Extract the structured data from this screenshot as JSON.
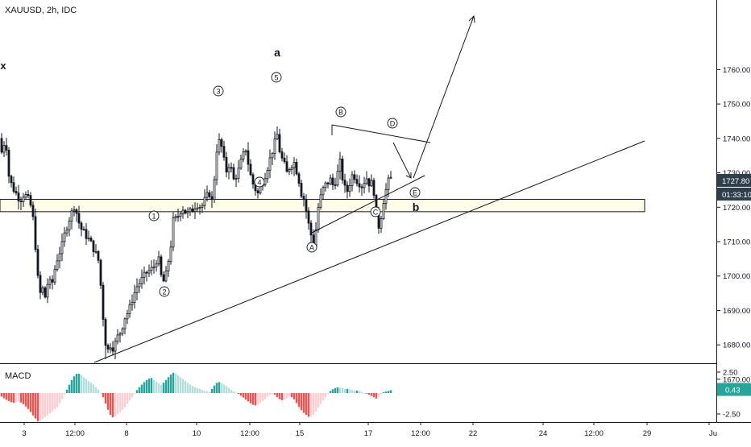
{
  "header": {
    "title": "XAUUSD, 2h, IDC"
  },
  "macd": {
    "label": "MACD",
    "ticks": [
      "2.50",
      "-2.50"
    ],
    "value_badge": "0.43"
  },
  "price_badges": {
    "last": "1727.80",
    "countdown": "01:33:10"
  },
  "colors": {
    "up_candle": "#ffffff",
    "down_candle": "#131722",
    "macd_pos_strong": "#26a69a",
    "macd_pos_weak": "#b2dfdb",
    "macd_neg_strong": "#ef5350",
    "macd_neg_weak": "#ffcdd2",
    "zone_fill": "#fffde7",
    "badge_bg": "#2f3e4b",
    "macd_badge_bg": "#26a69a"
  },
  "chart_data": {
    "type": "candlestick",
    "y_axis": {
      "ticks": [
        1670,
        1680,
        1690,
        1700,
        1710,
        1720,
        1730,
        1740,
        1750,
        1760
      ],
      "labels": [
        "1670.00",
        "1680.00",
        "1690.00",
        "1700.00",
        "1710.00",
        "1720.00",
        "1730.00",
        "1740.00",
        "1750.00",
        "1760.00"
      ],
      "range": [
        1666,
        1776
      ]
    },
    "x_axis": {
      "labels": [
        "3",
        "12:00",
        "8",
        "10",
        "12:00",
        "15",
        "17",
        "12:00",
        "22",
        "24",
        "12:00",
        "29",
        "Ju"
      ]
    },
    "price_path": [
      [
        0,
        1740
      ],
      [
        4,
        1732
      ],
      [
        6,
        1745
      ],
      [
        10,
        1730
      ],
      [
        15,
        1726
      ],
      [
        20,
        1724
      ],
      [
        25,
        1722
      ],
      [
        30,
        1724
      ],
      [
        36,
        1722
      ],
      [
        40,
        1719
      ],
      [
        43,
        1712
      ],
      [
        46,
        1702
      ],
      [
        49,
        1694
      ],
      [
        52,
        1697
      ],
      [
        56,
        1694
      ],
      [
        60,
        1699
      ],
      [
        64,
        1697
      ],
      [
        68,
        1702
      ],
      [
        72,
        1706
      ],
      [
        76,
        1708
      ],
      [
        80,
        1712
      ],
      [
        85,
        1716
      ],
      [
        90,
        1719
      ],
      [
        93,
        1721
      ],
      [
        96,
        1717
      ],
      [
        100,
        1714
      ],
      [
        106,
        1712
      ],
      [
        112,
        1710
      ],
      [
        118,
        1707
      ],
      [
        123,
        1704
      ],
      [
        126,
        1694
      ],
      [
        130,
        1682
      ],
      [
        133,
        1678
      ],
      [
        137,
        1680
      ],
      [
        141,
        1679
      ],
      [
        145,
        1682
      ],
      [
        150,
        1684
      ],
      [
        155,
        1688
      ],
      [
        160,
        1690
      ],
      [
        165,
        1694
      ],
      [
        170,
        1697
      ],
      [
        176,
        1699
      ],
      [
        182,
        1701
      ],
      [
        188,
        1702
      ],
      [
        192,
        1703
      ],
      [
        196,
        1706
      ],
      [
        200,
        1700
      ],
      [
        204,
        1698
      ],
      [
        208,
        1703
      ],
      [
        212,
        1709
      ],
      [
        215,
        1716
      ],
      [
        220,
        1717
      ],
      [
        226,
        1720
      ],
      [
        232,
        1718
      ],
      [
        238,
        1719
      ],
      [
        244,
        1721
      ],
      [
        250,
        1720
      ],
      [
        256,
        1723
      ],
      [
        260,
        1724
      ],
      [
        264,
        1721
      ],
      [
        268,
        1736
      ],
      [
        272,
        1739
      ],
      [
        276,
        1737
      ],
      [
        280,
        1730
      ],
      [
        285,
        1733
      ],
      [
        290,
        1728
      ],
      [
        295,
        1730
      ],
      [
        300,
        1734
      ],
      [
        305,
        1737
      ],
      [
        310,
        1730
      ],
      [
        315,
        1726
      ],
      [
        320,
        1724
      ],
      [
        325,
        1727
      ],
      [
        330,
        1730
      ],
      [
        335,
        1734
      ],
      [
        340,
        1738
      ],
      [
        344,
        1741
      ],
      [
        348,
        1735
      ],
      [
        352,
        1733
      ],
      [
        356,
        1730
      ],
      [
        360,
        1732
      ],
      [
        365,
        1733
      ],
      [
        370,
        1729
      ],
      [
        374,
        1724
      ],
      [
        378,
        1722
      ],
      [
        382,
        1716
      ],
      [
        386,
        1712
      ],
      [
        390,
        1708
      ],
      [
        394,
        1719
      ],
      [
        398,
        1723
      ],
      [
        402,
        1726
      ],
      [
        406,
        1727
      ],
      [
        410,
        1728
      ],
      [
        414,
        1726
      ],
      [
        418,
        1729
      ],
      [
        422,
        1733
      ],
      [
        426,
        1727
      ],
      [
        430,
        1724
      ],
      [
        434,
        1727
      ],
      [
        438,
        1730
      ],
      [
        442,
        1728
      ],
      [
        446,
        1727
      ],
      [
        450,
        1726
      ],
      [
        454,
        1729
      ],
      [
        458,
        1727
      ],
      [
        462,
        1727
      ],
      [
        466,
        1722
      ],
      [
        468,
        1713
      ],
      [
        472,
        1716
      ],
      [
        476,
        1722
      ],
      [
        480,
        1726
      ],
      [
        484,
        1729
      ],
      [
        487,
        1727
      ]
    ],
    "macd_path": [
      [
        0,
        -0.3
      ],
      [
        8,
        -0.8
      ],
      [
        16,
        -1.2
      ],
      [
        24,
        -1.0
      ],
      [
        30,
        -1.4
      ],
      [
        36,
        -2.0
      ],
      [
        42,
        -2.8
      ],
      [
        48,
        -3.5
      ],
      [
        54,
        -3.0
      ],
      [
        60,
        -2.6
      ],
      [
        66,
        -2.1
      ],
      [
        72,
        -1.6
      ],
      [
        76,
        -0.9
      ],
      [
        80,
        -0.2
      ],
      [
        84,
        0.6
      ],
      [
        88,
        1.4
      ],
      [
        92,
        2.0
      ],
      [
        96,
        2.4
      ],
      [
        100,
        2.2
      ],
      [
        104,
        1.9
      ],
      [
        108,
        1.6
      ],
      [
        112,
        1.3
      ],
      [
        116,
        1.0
      ],
      [
        120,
        0.6
      ],
      [
        124,
        0.2
      ],
      [
        128,
        -0.5
      ],
      [
        132,
        -1.5
      ],
      [
        136,
        -2.5
      ],
      [
        140,
        -2.9
      ],
      [
        144,
        -2.7
      ],
      [
        148,
        -2.4
      ],
      [
        152,
        -2.0
      ],
      [
        156,
        -1.6
      ],
      [
        160,
        -1.0
      ],
      [
        164,
        -0.5
      ],
      [
        168,
        0.1
      ],
      [
        172,
        0.6
      ],
      [
        176,
        1.0
      ],
      [
        180,
        1.4
      ],
      [
        184,
        1.7
      ],
      [
        188,
        1.8
      ],
      [
        192,
        1.5
      ],
      [
        196,
        1.2
      ],
      [
        200,
        1.0
      ],
      [
        204,
        1.3
      ],
      [
        208,
        1.8
      ],
      [
        212,
        2.2
      ],
      [
        216,
        2.5
      ],
      [
        220,
        2.2
      ],
      [
        224,
        1.9
      ],
      [
        228,
        1.6
      ],
      [
        232,
        1.3
      ],
      [
        236,
        1.0
      ],
      [
        240,
        0.8
      ],
      [
        244,
        0.6
      ],
      [
        248,
        0.5
      ],
      [
        252,
        0.3
      ],
      [
        256,
        0.2
      ],
      [
        260,
        0.1
      ],
      [
        264,
        0.6
      ],
      [
        268,
        1.2
      ],
      [
        272,
        1.3
      ],
      [
        276,
        1.1
      ],
      [
        280,
        0.9
      ],
      [
        284,
        0.6
      ],
      [
        288,
        0.3
      ],
      [
        292,
        0.1
      ],
      [
        296,
        -0.1
      ],
      [
        300,
        -0.4
      ],
      [
        304,
        -0.7
      ],
      [
        308,
        -1.0
      ],
      [
        312,
        -1.3
      ],
      [
        316,
        -1.5
      ],
      [
        320,
        -1.4
      ],
      [
        324,
        -1.1
      ],
      [
        328,
        -0.8
      ],
      [
        332,
        -0.4
      ],
      [
        336,
        -0.2
      ],
      [
        340,
        -0.1
      ],
      [
        344,
        -0.5
      ],
      [
        348,
        -0.8
      ],
      [
        352,
        -0.9
      ],
      [
        356,
        -0.6
      ],
      [
        360,
        -0.4
      ],
      [
        364,
        -0.6
      ],
      [
        368,
        -1.2
      ],
      [
        372,
        -1.8
      ],
      [
        376,
        -2.3
      ],
      [
        380,
        -2.6
      ],
      [
        384,
        -2.9
      ],
      [
        388,
        -2.7
      ],
      [
        392,
        -2.2
      ],
      [
        396,
        -1.6
      ],
      [
        400,
        -1.0
      ],
      [
        404,
        -0.5
      ],
      [
        408,
        0.1
      ],
      [
        412,
        0.4
      ],
      [
        416,
        0.6
      ],
      [
        420,
        0.7
      ],
      [
        424,
        0.6
      ],
      [
        428,
        0.5
      ],
      [
        432,
        0.5
      ],
      [
        436,
        0.4
      ],
      [
        440,
        0.3
      ],
      [
        444,
        0.3
      ],
      [
        448,
        0.2
      ],
      [
        452,
        0.0
      ],
      [
        456,
        -0.1
      ],
      [
        460,
        -0.3
      ],
      [
        464,
        -0.5
      ],
      [
        468,
        -0.7
      ],
      [
        472,
        -0.3
      ],
      [
        476,
        0.1
      ],
      [
        480,
        0.2
      ],
      [
        484,
        0.3
      ],
      [
        487,
        0.43
      ]
    ],
    "annotations": [
      {
        "text": "x",
        "kind": "label"
      },
      {
        "text": "a",
        "kind": "label"
      },
      {
        "text": "b",
        "kind": "label"
      },
      {
        "text": "1",
        "kind": "wave",
        "price": 1713.5
      },
      {
        "text": "2",
        "kind": "wave",
        "price": 1692.5
      },
      {
        "text": "3",
        "kind": "wave",
        "price": 1743
      },
      {
        "text": "4",
        "kind": "wave",
        "price": 1720.5
      },
      {
        "text": "5",
        "kind": "wave",
        "price": 1748.5
      },
      {
        "text": "A",
        "kind": "wave",
        "price": 1700
      },
      {
        "text": "B",
        "kind": "wave",
        "price": 1736
      },
      {
        "text": "C",
        "kind": "wave",
        "price": 1712
      },
      {
        "text": "D",
        "kind": "wave",
        "price": 1731
      },
      {
        "text": "E",
        "kind": "wave",
        "price": 1717
      }
    ],
    "support_zone": [
      1718.7,
      1722.3
    ],
    "grid": false
  }
}
